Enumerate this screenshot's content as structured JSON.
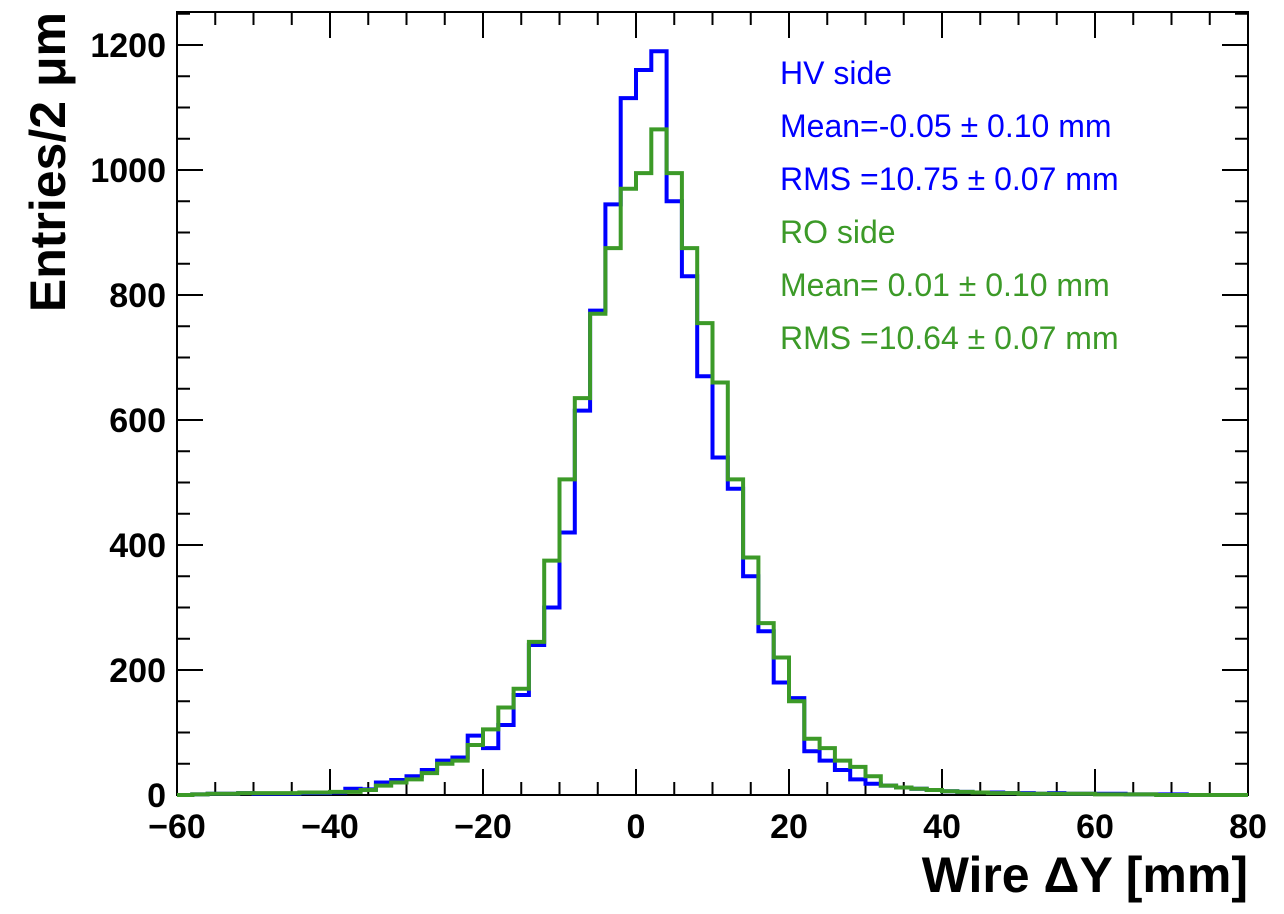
{
  "chart_data": {
    "type": "histogram",
    "xlabel": "Wire  ΔY [mm]",
    "ylabel": "Entries/2  μm",
    "xlim": [
      -60,
      80
    ],
    "ylim": [
      0,
      1200
    ],
    "x_ticks": [
      "−60",
      "−40",
      "−20",
      "0",
      "20",
      "40",
      "60",
      "80"
    ],
    "y_ticks": [
      "0",
      "200",
      "400",
      "600",
      "800",
      "1000",
      "1200"
    ],
    "bin_width": 2,
    "bin_start": -60,
    "grid": false,
    "legend_position": "top-right",
    "annotations": [
      {
        "text": "HV side",
        "color": "#0000ff"
      },
      {
        "text": "Mean=-0.05 ±  0.10 mm",
        "color": "#0000ff"
      },
      {
        "text": "RMS =10.75 ±  0.07 mm",
        "color": "#0000ff"
      },
      {
        "text": "RO side",
        "color": "#3c9a28"
      },
      {
        "text": "Mean= 0.01 ±  0.10 mm",
        "color": "#3c9a28"
      },
      {
        "text": "RMS =10.64 ±  0.07 mm",
        "color": "#3c9a28"
      }
    ],
    "series": [
      {
        "name": "HV side",
        "color": "#0000ff",
        "values": [
          0,
          1,
          2,
          2,
          3,
          2,
          2,
          2,
          3,
          3,
          4,
          10,
          9,
          20,
          24,
          30,
          40,
          55,
          60,
          95,
          75,
          112,
          160,
          240,
          300,
          420,
          615,
          775,
          945,
          1115,
          1160,
          1190,
          950,
          830,
          670,
          540,
          490,
          350,
          262,
          180,
          155,
          70,
          55,
          40,
          25,
          18,
          15,
          12,
          10,
          8,
          6,
          5,
          4,
          4,
          3,
          3,
          2,
          3,
          2,
          2,
          2,
          2,
          1,
          1,
          1,
          1,
          0,
          0,
          0,
          0
        ]
      },
      {
        "name": "RO side",
        "color": "#3c9a28",
        "values": [
          0,
          1,
          2,
          2,
          3,
          3,
          3,
          3,
          4,
          4,
          5,
          5,
          8,
          15,
          20,
          25,
          35,
          50,
          55,
          80,
          105,
          140,
          170,
          245,
          375,
          505,
          635,
          770,
          875,
          970,
          995,
          1065,
          995,
          875,
          755,
          660,
          505,
          380,
          275,
          220,
          150,
          90,
          75,
          55,
          45,
          30,
          15,
          12,
          10,
          8,
          6,
          5,
          4,
          3,
          3,
          2,
          2,
          2,
          2,
          2,
          1,
          1,
          1,
          1,
          0,
          0,
          0,
          0,
          0,
          0
        ]
      }
    ]
  }
}
